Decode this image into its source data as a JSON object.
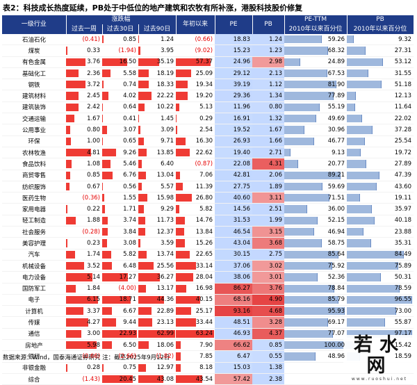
{
  "title": "表2：科技成长热度延续，PB处于中低位的地产建筑和农牧有所补涨，港股科技股价修复",
  "headers": {
    "industry": "一级行业",
    "change_group": "涨跌幅",
    "week": "过去一周",
    "d30": "过去30日",
    "d90": "过去90日",
    "ytd": "年初以来",
    "pe": "PE",
    "pb": "PB",
    "pe_ttm_group": "PE-TTM",
    "pb_group": "PB",
    "pe_pct": "2010年以来百分位",
    "pb_pct": "2010年以来百分位"
  },
  "rows": [
    {
      "name": "石油石化",
      "week": "(0.41)",
      "d30": "0.85",
      "d90": "1.24",
      "ytd": "(0.66)",
      "pe": "18.83",
      "pb": "1.24",
      "pe_pct": "59.26",
      "pb_pct": "9.32"
    },
    {
      "name": "煤炭",
      "week": "0.33",
      "d30": "(1.94)",
      "d90": "3.95",
      "ytd": "(9.02)",
      "pe": "15.23",
      "pb": "1.23",
      "pe_pct": "68.32",
      "pb_pct": "27.31"
    },
    {
      "name": "有色金属",
      "week": "3.76",
      "d30": "16.50",
      "d90": "35.19",
      "ytd": "57.37",
      "pe": "24.96",
      "pb": "2.98",
      "pe_pct": "24.89",
      "pb_pct": "53.12"
    },
    {
      "name": "基础化工",
      "week": "2.36",
      "d30": "5.58",
      "d90": "18.19",
      "ytd": "25.09",
      "pe": "29.12",
      "pb": "2.13",
      "pe_pct": "67.53",
      "pb_pct": "31.55"
    },
    {
      "name": "钢铁",
      "week": "3.72",
      "d30": "0.74",
      "d90": "18.33",
      "ytd": "19.34",
      "pe": "39.19",
      "pb": "1.12",
      "pe_pct": "81.90",
      "pb_pct": "51.18"
    },
    {
      "name": "建筑材料",
      "week": "2.45",
      "d30": "4.02",
      "d90": "22.22",
      "ytd": "19.20",
      "pe": "29.36",
      "pb": "1.34",
      "pe_pct": "77.89",
      "pb_pct": "12.13"
    },
    {
      "name": "建筑装饰",
      "week": "2.42",
      "d30": "0.64",
      "d90": "10.22",
      "ytd": "5.13",
      "pe": "11.96",
      "pb": "0.80",
      "pe_pct": "55.19",
      "pb_pct": "11.64"
    },
    {
      "name": "交通运输",
      "week": "1.67",
      "d30": "0.41",
      "d90": "1.45",
      "ytd": "0.29",
      "pe": "16.91",
      "pb": "1.32",
      "pe_pct": "49.69",
      "pb_pct": "22.02"
    },
    {
      "name": "公用事业",
      "week": "0.80",
      "d30": "3.07",
      "d90": "3.09",
      "ytd": "2.54",
      "pe": "19.52",
      "pb": "1.67",
      "pe_pct": "30.96",
      "pb_pct": "37.28"
    },
    {
      "name": "环保",
      "week": "1.00",
      "d30": "0.65",
      "d90": "9.71",
      "ytd": "16.30",
      "pe": "26.93",
      "pb": "1.66",
      "pe_pct": "46.77",
      "pb_pct": "25.54"
    },
    {
      "name": "农林牧渔",
      "week": "4.81",
      "d30": "9.26",
      "d90": "13.85",
      "ytd": "22.62",
      "pe": "19.40",
      "pb": "2.71",
      "pe_pct": "9.13",
      "pb_pct": "19.72"
    },
    {
      "name": "食品饮料",
      "week": "1.08",
      "d30": "5.46",
      "d90": "6.40",
      "ytd": "(0.87)",
      "pe": "22.08",
      "pb": "4.31",
      "pe_pct": "20.77",
      "pb_pct": "27.89"
    },
    {
      "name": "商贸零售",
      "week": "0.85",
      "d30": "6.76",
      "d90": "13.04",
      "ytd": "7.06",
      "pe": "42.81",
      "pb": "2.06",
      "pe_pct": "89.21",
      "pb_pct": "47.39"
    },
    {
      "name": "纺织服饰",
      "week": "0.67",
      "d30": "0.56",
      "d90": "5.57",
      "ytd": "11.39",
      "pe": "27.75",
      "pb": "1.89",
      "pe_pct": "59.69",
      "pb_pct": "43.60"
    },
    {
      "name": "医药生物",
      "week": "(0.36)",
      "d30": "1.55",
      "d90": "15.98",
      "ytd": "26.80",
      "pe": "40.60",
      "pb": "3.11",
      "pe_pct": "71.51",
      "pb_pct": "19.11"
    },
    {
      "name": "家用电器",
      "week": "0.22",
      "d30": "1.71",
      "d90": "9.29",
      "ytd": "5.82",
      "pe": "14.56",
      "pb": "2.51",
      "pe_pct": "36.00",
      "pb_pct": "35.97"
    },
    {
      "name": "轻工制造",
      "week": "1.88",
      "d30": "3.74",
      "d90": "11.73",
      "ytd": "14.76",
      "pe": "31.53",
      "pb": "1.99",
      "pe_pct": "52.15",
      "pb_pct": "40.18"
    },
    {
      "name": "社会服务",
      "week": "(0.28)",
      "d30": "3.84",
      "d90": "12.37",
      "ytd": "13.84",
      "pe": "46.54",
      "pb": "3.15",
      "pe_pct": "46.94",
      "pb_pct": "23.88"
    },
    {
      "name": "美容护理",
      "week": "0.23",
      "d30": "3.08",
      "d90": "3.59",
      "ytd": "15.26",
      "pe": "43.04",
      "pb": "3.68",
      "pe_pct": "58.75",
      "pb_pct": "35.31"
    },
    {
      "name": "汽车",
      "week": "1.74",
      "d30": "5.82",
      "d90": "13.74",
      "ytd": "22.65",
      "pe": "30.15",
      "pb": "2.75",
      "pe_pct": "85.64",
      "pb_pct": "84.49"
    },
    {
      "name": "机械设备",
      "week": "3.52",
      "d30": "6.48",
      "d90": "25.56",
      "ytd": "33.14",
      "pe": "37.06",
      "pb": "3.02",
      "pe_pct": "75.92",
      "pb_pct": "75.89"
    },
    {
      "name": "电力设备",
      "week": "5.14",
      "d30": "17.27",
      "d90": "36.27",
      "ytd": "28.04",
      "pe": "38.06",
      "pb": "3.01",
      "pe_pct": "52.36",
      "pb_pct": "50.31"
    },
    {
      "name": "国防军工",
      "week": "1.84",
      "d30": "(4.00)",
      "d90": "13.17",
      "ytd": "16.98",
      "pe": "86.27",
      "pb": "3.76",
      "pe_pct": "78.84",
      "pb_pct": "78.59"
    },
    {
      "name": "电子",
      "week": "6.15",
      "d30": "18.71",
      "d90": "44.36",
      "ytd": "40.15",
      "pe": "68.16",
      "pb": "4.90",
      "pe_pct": "85.79",
      "pb_pct": "96.55"
    },
    {
      "name": "计算机",
      "week": "3.37",
      "d30": "6.67",
      "d90": "22.89",
      "ytd": "25.17",
      "pe": "93.16",
      "pb": "4.68",
      "pe_pct": "95.93",
      "pb_pct": "73.00"
    },
    {
      "name": "传媒",
      "week": "4.27",
      "d30": "9.44",
      "d90": "23.13",
      "ytd": "33.44",
      "pe": "48.51",
      "pb": "3.28",
      "pe_pct": "69.17",
      "pb_pct": "55.87"
    },
    {
      "name": "通信",
      "week": "3.00",
      "d30": "22.93",
      "d90": "62.99",
      "ytd": "63.24",
      "pe": "46.93",
      "pb": "4.37",
      "pe_pct": "77.07",
      "pb_pct": "97.17"
    },
    {
      "name": "房地产",
      "week": "5.98",
      "d30": "6.50",
      "d90": "18.06",
      "ytd": "7.90",
      "pe": "66.62",
      "pb": "0.85",
      "pe_pct": "100.00",
      "pb_pct": "15.42"
    },
    {
      "name": "银行",
      "week": "(0.66)",
      "d30": "(2.66)",
      "d90": "(1.82)",
      "ytd": "7.85",
      "pe": "6.47",
      "pb": "0.55",
      "pe_pct": "48.96",
      "pb_pct": "18.59"
    },
    {
      "name": "非银金融",
      "week": "0.28",
      "d30": "0.75",
      "d90": "12.97",
      "ytd": "8.18",
      "pe": "15.03",
      "pb": "1.38",
      "pe_pct": "",
      "pb_pct": ""
    },
    {
      "name": "综合",
      "week": "(1.43)",
      "d30": "20.45",
      "d90": "43.08",
      "ytd": "43.54",
      "pe": "57.42",
      "pb": "2.38",
      "pe_pct": "",
      "pb_pct": ""
    }
  ],
  "footer": "数据来源：Wind，国泰海通证券研究  注：截至2025年9月12日",
  "logo": {
    "text": "若水网",
    "sub": "www.ruoshui.net"
  },
  "colors": {
    "header_bg": "#1f3c88",
    "positive_bar": "#ef3b34",
    "negative_text": "#e60000",
    "pct_bar": "#9fb8dd"
  }
}
